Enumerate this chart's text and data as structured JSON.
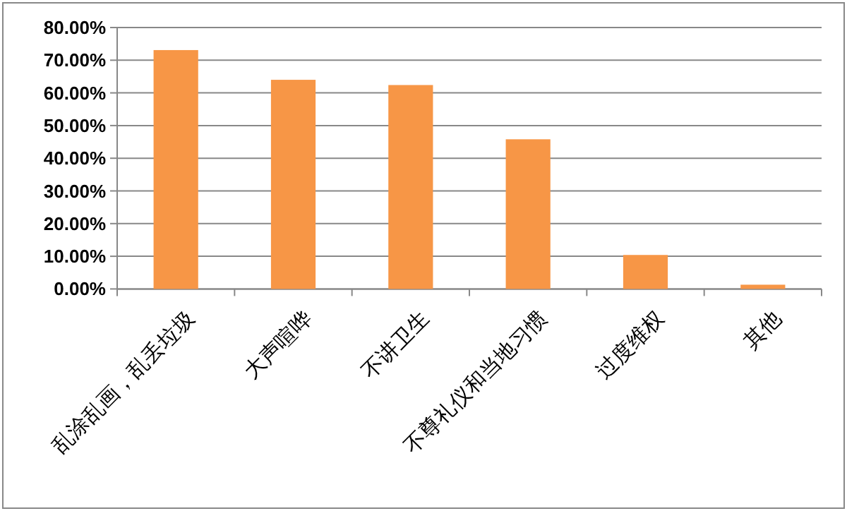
{
  "chart_data": {
    "type": "bar",
    "categories": [
      "乱涂乱画，乱丢垃圾",
      "大声喧哗",
      "不讲卫生",
      "不尊礼仪和当地习惯",
      "过度维权",
      "其他"
    ],
    "values": [
      73.1,
      64.0,
      62.4,
      45.8,
      10.4,
      1.3
    ],
    "color": "#f79646",
    "ylim": [
      0,
      80
    ],
    "yticks": [
      {
        "value": 0,
        "label": "0.00%"
      },
      {
        "value": 10,
        "label": "10.00%"
      },
      {
        "value": 20,
        "label": "20.00%"
      },
      {
        "value": 30,
        "label": "30.00%"
      },
      {
        "value": 40,
        "label": "40.00%"
      },
      {
        "value": 50,
        "label": "50.00%"
      },
      {
        "value": 60,
        "label": "60.00%"
      },
      {
        "value": 70,
        "label": "70.00%"
      },
      {
        "value": 80,
        "label": "80.00%"
      }
    ],
    "grid": "y"
  }
}
